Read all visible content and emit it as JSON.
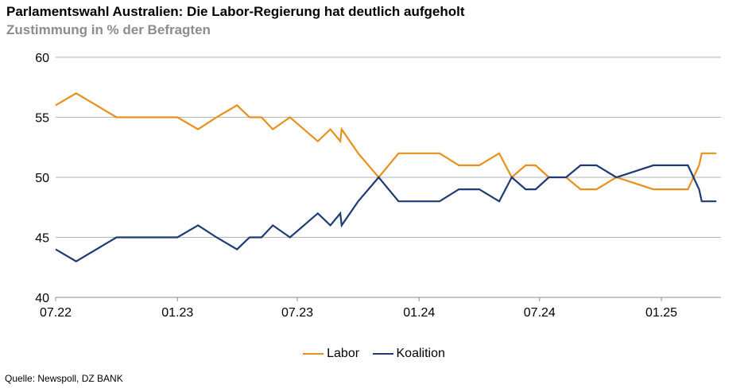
{
  "title": "Parlamentswahl Australien: Die Labor-Regierung hat deutlich aufgeholt",
  "subtitle": "Zustimmung in % der Befragten",
  "source": "Quelle: Newspoll, DZ BANK",
  "colors": {
    "Labor": "#e8901d",
    "Koalition": "#1f3a75",
    "grid": "#b5b5b5"
  },
  "chart_data": {
    "type": "line",
    "title": "Parlamentswahl Australien: Die Labor-Regierung hat deutlich aufgeholt",
    "subtitle": "Zustimmung in % der Befragten",
    "xlabel": "",
    "ylabel": "",
    "ylim": [
      40,
      60
    ],
    "yticks": [
      40,
      45,
      50,
      55,
      60
    ],
    "xlim": [
      "2022-07",
      "2025-04"
    ],
    "xticks": [
      {
        "x": "2022-07",
        "label": "07.22"
      },
      {
        "x": "2023-01",
        "label": "01.23"
      },
      {
        "x": "2023-07",
        "label": "07.23"
      },
      {
        "x": "2024-01",
        "label": "01.24"
      },
      {
        "x": "2024-07",
        "label": "07.24"
      },
      {
        "x": "2025-01",
        "label": "01.25"
      }
    ],
    "grid": "horizontal",
    "legend": "bottom-center",
    "series": [
      {
        "name": "Labor",
        "points": [
          [
            "2022-07-01",
            56
          ],
          [
            "2022-08-01",
            57
          ],
          [
            "2022-10-01",
            55
          ],
          [
            "2022-11-01",
            55
          ],
          [
            "2023-01-01",
            55
          ],
          [
            "2023-02-01",
            54
          ],
          [
            "2023-03-01",
            55
          ],
          [
            "2023-04-01",
            56
          ],
          [
            "2023-04-20",
            55
          ],
          [
            "2023-05-08",
            55
          ],
          [
            "2023-05-25",
            54
          ],
          [
            "2023-06-20",
            55
          ],
          [
            "2023-08-01",
            53
          ],
          [
            "2023-08-20",
            54
          ],
          [
            "2023-09-04",
            53
          ],
          [
            "2023-09-06",
            54
          ],
          [
            "2023-10-01",
            52
          ],
          [
            "2023-11-01",
            50
          ],
          [
            "2023-12-01",
            52
          ],
          [
            "2024-02-01",
            52
          ],
          [
            "2024-03-01",
            51
          ],
          [
            "2024-04-01",
            51
          ],
          [
            "2024-05-01",
            52
          ],
          [
            "2024-05-20",
            50
          ],
          [
            "2024-06-10",
            51
          ],
          [
            "2024-06-25",
            51
          ],
          [
            "2024-07-15",
            50
          ],
          [
            "2024-08-10",
            50
          ],
          [
            "2024-09-01",
            49
          ],
          [
            "2024-09-25",
            49
          ],
          [
            "2024-10-25",
            50
          ],
          [
            "2024-12-20",
            49
          ],
          [
            "2025-02-10",
            49
          ],
          [
            "2025-02-27",
            51
          ],
          [
            "2025-03-03",
            52
          ],
          [
            "2025-03-25",
            52
          ]
        ]
      },
      {
        "name": "Koalition",
        "points": [
          [
            "2022-07-01",
            44
          ],
          [
            "2022-08-01",
            43
          ],
          [
            "2022-10-01",
            45
          ],
          [
            "2022-11-01",
            45
          ],
          [
            "2023-01-01",
            45
          ],
          [
            "2023-02-01",
            46
          ],
          [
            "2023-03-01",
            45
          ],
          [
            "2023-04-01",
            44
          ],
          [
            "2023-04-20",
            45
          ],
          [
            "2023-05-08",
            45
          ],
          [
            "2023-05-25",
            46
          ],
          [
            "2023-06-20",
            45
          ],
          [
            "2023-08-01",
            47
          ],
          [
            "2023-08-20",
            46
          ],
          [
            "2023-09-04",
            47
          ],
          [
            "2023-09-06",
            46
          ],
          [
            "2023-10-01",
            48
          ],
          [
            "2023-11-01",
            50
          ],
          [
            "2023-12-01",
            48
          ],
          [
            "2024-02-01",
            48
          ],
          [
            "2024-03-01",
            49
          ],
          [
            "2024-04-01",
            49
          ],
          [
            "2024-05-01",
            48
          ],
          [
            "2024-05-20",
            50
          ],
          [
            "2024-06-10",
            49
          ],
          [
            "2024-06-25",
            49
          ],
          [
            "2024-07-15",
            50
          ],
          [
            "2024-08-10",
            50
          ],
          [
            "2024-09-01",
            51
          ],
          [
            "2024-09-25",
            51
          ],
          [
            "2024-10-25",
            50
          ],
          [
            "2024-12-20",
            51
          ],
          [
            "2025-02-10",
            51
          ],
          [
            "2025-02-27",
            49
          ],
          [
            "2025-03-03",
            48
          ],
          [
            "2025-03-25",
            48
          ]
        ]
      }
    ]
  }
}
